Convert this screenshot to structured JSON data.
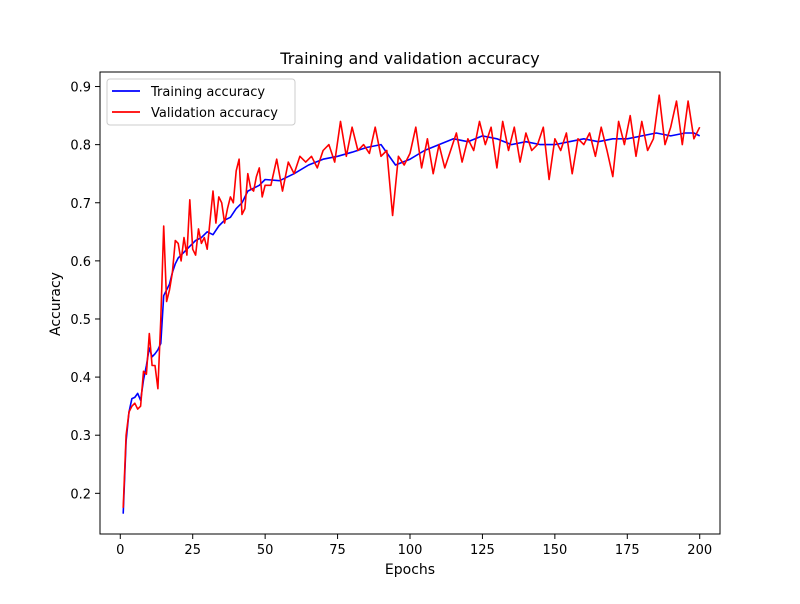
{
  "chart_data": {
    "type": "line",
    "title": "Training and validation accuracy",
    "xlabel": "Epochs",
    "ylabel": "Accuracy",
    "xlim": [
      -7,
      207
    ],
    "ylim": [
      0.13,
      0.925
    ],
    "xticks": [
      0,
      25,
      50,
      75,
      100,
      125,
      150,
      175,
      200
    ],
    "xtick_labels": [
      "0",
      "25",
      "50",
      "75",
      "100",
      "125",
      "150",
      "175",
      "200"
    ],
    "yticks": [
      0.2,
      0.3,
      0.4,
      0.5,
      0.6,
      0.7,
      0.8,
      0.9
    ],
    "ytick_labels": [
      "0.2",
      "0.3",
      "0.4",
      "0.5",
      "0.6",
      "0.7",
      "0.8",
      "0.9"
    ],
    "grid": false,
    "legend_position": "top-left",
    "series": [
      {
        "name": "Training accuracy",
        "color": "#0000ff",
        "x": [
          1,
          2,
          3,
          4,
          5,
          6,
          7,
          8,
          9,
          10,
          11,
          12,
          13,
          14,
          15,
          16,
          17,
          18,
          19,
          20,
          22,
          24,
          26,
          28,
          30,
          32,
          34,
          36,
          38,
          40,
          42,
          44,
          46,
          48,
          50,
          55,
          60,
          65,
          70,
          75,
          80,
          85,
          90,
          95,
          100,
          105,
          110,
          115,
          120,
          125,
          130,
          135,
          140,
          145,
          150,
          155,
          160,
          165,
          170,
          175,
          180,
          185,
          190,
          195,
          198,
          200
        ],
        "values": [
          0.165,
          0.29,
          0.34,
          0.363,
          0.365,
          0.372,
          0.36,
          0.395,
          0.42,
          0.45,
          0.435,
          0.44,
          0.447,
          0.458,
          0.54,
          0.55,
          0.56,
          0.58,
          0.595,
          0.605,
          0.615,
          0.625,
          0.635,
          0.64,
          0.65,
          0.645,
          0.66,
          0.67,
          0.675,
          0.69,
          0.7,
          0.72,
          0.725,
          0.73,
          0.74,
          0.738,
          0.75,
          0.765,
          0.775,
          0.78,
          0.787,
          0.795,
          0.8,
          0.765,
          0.775,
          0.79,
          0.8,
          0.81,
          0.805,
          0.815,
          0.81,
          0.8,
          0.805,
          0.8,
          0.8,
          0.805,
          0.81,
          0.805,
          0.81,
          0.81,
          0.815,
          0.82,
          0.815,
          0.82,
          0.82,
          0.815
        ]
      },
      {
        "name": "Validation accuracy",
        "color": "#ff0000",
        "x": [
          1,
          2,
          3,
          4,
          5,
          6,
          7,
          8,
          9,
          10,
          11,
          12,
          13,
          14,
          15,
          16,
          17,
          18,
          19,
          20,
          21,
          22,
          23,
          24,
          25,
          26,
          27,
          28,
          29,
          30,
          31,
          32,
          33,
          34,
          35,
          36,
          37,
          38,
          39,
          40,
          41,
          42,
          43,
          44,
          45,
          46,
          47,
          48,
          49,
          50,
          52,
          54,
          56,
          58,
          60,
          62,
          64,
          66,
          68,
          70,
          72,
          74,
          76,
          78,
          80,
          82,
          84,
          86,
          88,
          90,
          92,
          94,
          96,
          98,
          100,
          102,
          104,
          106,
          108,
          110,
          112,
          114,
          116,
          118,
          120,
          122,
          124,
          126,
          128,
          130,
          132,
          134,
          136,
          138,
          140,
          142,
          144,
          146,
          148,
          150,
          152,
          154,
          156,
          158,
          160,
          162,
          164,
          166,
          168,
          170,
          172,
          174,
          176,
          178,
          180,
          182,
          184,
          186,
          188,
          190,
          192,
          194,
          196,
          198,
          200
        ],
        "values": [
          0.175,
          0.3,
          0.34,
          0.35,
          0.355,
          0.345,
          0.35,
          0.41,
          0.405,
          0.475,
          0.42,
          0.42,
          0.38,
          0.5,
          0.66,
          0.53,
          0.55,
          0.58,
          0.635,
          0.63,
          0.6,
          0.64,
          0.61,
          0.705,
          0.62,
          0.61,
          0.655,
          0.63,
          0.64,
          0.62,
          0.67,
          0.72,
          0.665,
          0.71,
          0.7,
          0.665,
          0.69,
          0.71,
          0.7,
          0.755,
          0.775,
          0.68,
          0.69,
          0.75,
          0.725,
          0.72,
          0.745,
          0.76,
          0.71,
          0.73,
          0.73,
          0.775,
          0.72,
          0.77,
          0.75,
          0.78,
          0.77,
          0.78,
          0.76,
          0.79,
          0.8,
          0.77,
          0.84,
          0.78,
          0.83,
          0.79,
          0.8,
          0.785,
          0.83,
          0.78,
          0.79,
          0.678,
          0.78,
          0.765,
          0.785,
          0.83,
          0.76,
          0.81,
          0.75,
          0.8,
          0.76,
          0.79,
          0.82,
          0.77,
          0.81,
          0.79,
          0.84,
          0.8,
          0.83,
          0.76,
          0.84,
          0.79,
          0.83,
          0.77,
          0.82,
          0.79,
          0.8,
          0.83,
          0.74,
          0.81,
          0.79,
          0.82,
          0.75,
          0.81,
          0.8,
          0.82,
          0.78,
          0.83,
          0.79,
          0.745,
          0.84,
          0.8,
          0.85,
          0.78,
          0.84,
          0.79,
          0.81,
          0.885,
          0.8,
          0.83,
          0.875,
          0.8,
          0.875,
          0.81,
          0.83
        ]
      }
    ]
  }
}
